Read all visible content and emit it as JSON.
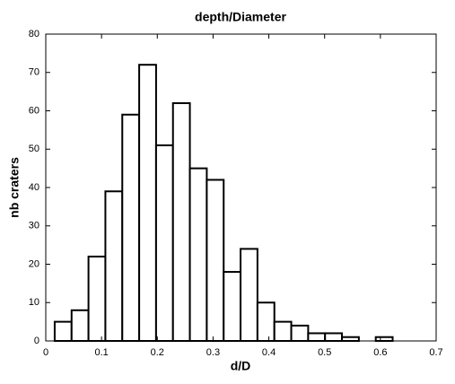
{
  "chart_data": {
    "type": "histogram",
    "title": "depth/Diameter",
    "x_label": "d/D",
    "y_label": "nb craters",
    "bins": [
      0.016,
      0.0463,
      0.0766,
      0.1069,
      0.1372,
      0.1675,
      0.1978,
      0.2281,
      0.2584,
      0.2887,
      0.319,
      0.3493,
      0.3796,
      0.4099,
      0.4402,
      0.4705,
      0.5008,
      0.5311,
      0.5614,
      0.5917,
      0.622
    ],
    "values": [
      5,
      8,
      22,
      39,
      59,
      72,
      51,
      62,
      45,
      42,
      18,
      24,
      10,
      5,
      4,
      2,
      2,
      1,
      0,
      1
    ],
    "color": "#ffffff",
    "edge_color": "#000000",
    "xlim": [
      0,
      0.7
    ],
    "xticks": [
      0,
      0.1,
      0.2,
      0.3,
      0.4,
      0.5,
      0.6,
      0.7
    ],
    "ylim": [
      0,
      80
    ],
    "yticks": [
      0,
      10,
      20,
      30,
      40,
      50,
      60,
      70,
      80
    ]
  }
}
